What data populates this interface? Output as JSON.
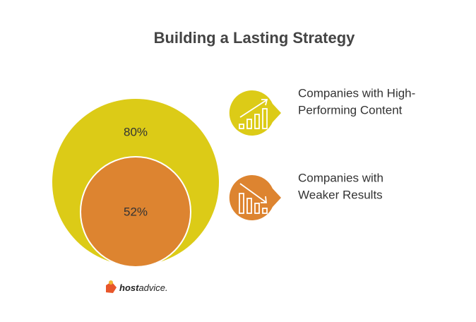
{
  "header": {
    "title": "Building a Lasting Strategy"
  },
  "items": [
    {
      "value": "80%",
      "lines": [
        "Companies with High-",
        "Performing Content"
      ]
    },
    {
      "value": "52%",
      "lines": [
        "Companies with",
        "Weaker Results"
      ]
    }
  ],
  "footer": {
    "brand_bold": "host",
    "brand_rest": "advice."
  }
}
